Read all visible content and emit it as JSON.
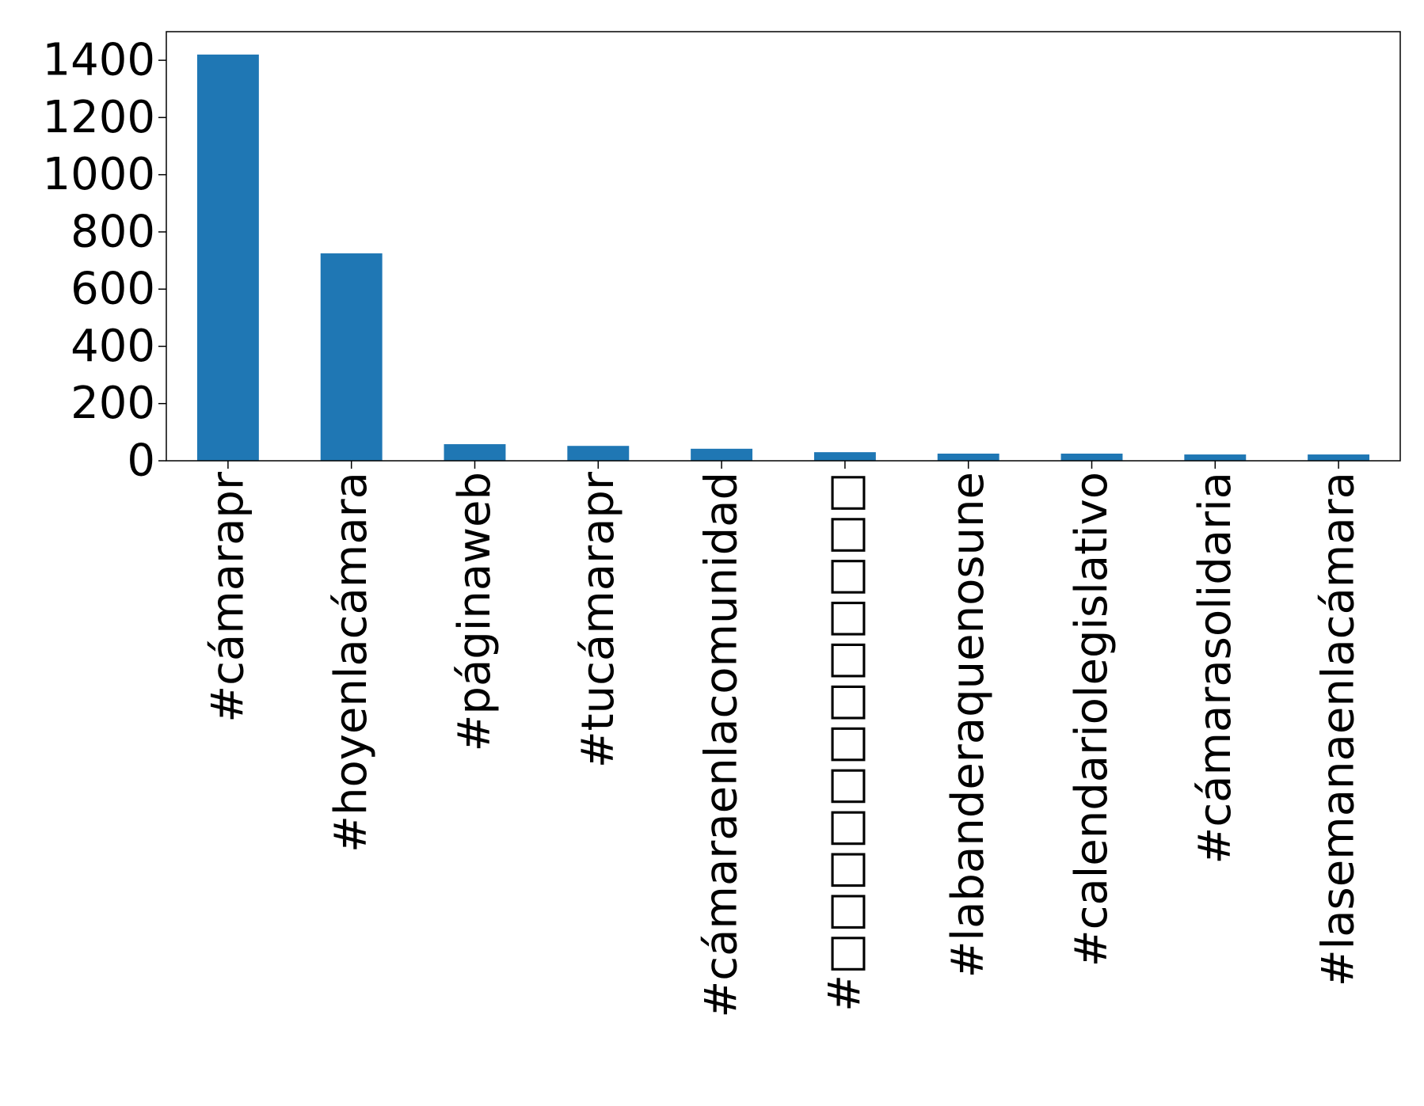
{
  "chart_data": {
    "type": "bar",
    "title": "",
    "xlabel": "",
    "ylabel": "",
    "categories": [
      "#cámarapr",
      "#hoyenlacámara",
      "#páginaweb",
      "#tucámarapr",
      "#cámaraenlacomunidad",
      "#□□□□□□□□□□□□",
      "#labanderaquenosune",
      "#calendariolegislativo",
      "#cámarasolidaria",
      "#lasemanaenlacámara"
    ],
    "values": [
      1420,
      725,
      58,
      52,
      42,
      30,
      25,
      25,
      22,
      22
    ],
    "ylim": [
      0,
      1500
    ],
    "yticks": [
      0,
      200,
      400,
      600,
      800,
      1000,
      1200,
      1400
    ],
    "grid": false,
    "legend": "none",
    "colors": {
      "bar": "#1f77b4"
    }
  }
}
